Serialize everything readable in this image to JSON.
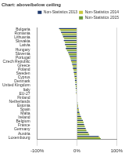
{
  "chart_data": {
    "type": "bar",
    "title": "Chart: above/below ceiling",
    "orientation": "horizontal",
    "categories": [
      "Bulgaria",
      "Romania",
      "Lithuania",
      "Slovakia",
      "Latvia",
      "Hungary",
      "Slovenia",
      "Portugal",
      "Czech Republic",
      "Greece",
      "Poland",
      "Sweden",
      "Cyprus",
      "Denmark",
      "United Kingdom",
      "Italy",
      "EU-27",
      "Finland",
      "Netherlands",
      "Estonia",
      "Spain",
      "Malta",
      "Ireland",
      "Belgium",
      "France",
      "Germany",
      "Austria",
      "Luxembourg"
    ],
    "series": [
      {
        "name": "Non-Statistics 2013",
        "color": "#1f3a6e",
        "values": [
          -45,
          -40,
          -35,
          -33,
          -30,
          -28,
          -22,
          -18,
          -15,
          -12,
          -10,
          -8,
          -6,
          -5,
          -4,
          -3,
          -2,
          -1,
          1,
          2,
          4,
          6,
          10,
          15,
          18,
          22,
          28,
          55
        ]
      },
      {
        "name": "Non-Statistics 2014",
        "color": "#c8c83c",
        "values": [
          -43,
          -38,
          -34,
          -31,
          -29,
          -26,
          -21,
          -17,
          -14,
          -11,
          -9,
          -7,
          -6,
          -4,
          -3,
          -2,
          -2,
          -1,
          1,
          3,
          5,
          7,
          11,
          16,
          19,
          23,
          30,
          58
        ]
      },
      {
        "name": "Non-Statistics 2015",
        "color": "#6a9a3a",
        "values": [
          -41,
          -37,
          -32,
          -30,
          -27,
          -25,
          -20,
          -16,
          -13,
          -10,
          -8,
          -7,
          -5,
          -4,
          -3,
          -2,
          -1,
          0,
          2,
          3,
          5,
          8,
          12,
          17,
          20,
          24,
          31,
          60
        ]
      }
    ],
    "xlim": [
      -100,
      100
    ],
    "xticks": [
      {
        "value": -100,
        "label": "-100%"
      },
      {
        "value": 0,
        "label": "0%"
      },
      {
        "value": 100,
        "label": "100%"
      }
    ],
    "grid": true,
    "legend": "upper right"
  }
}
